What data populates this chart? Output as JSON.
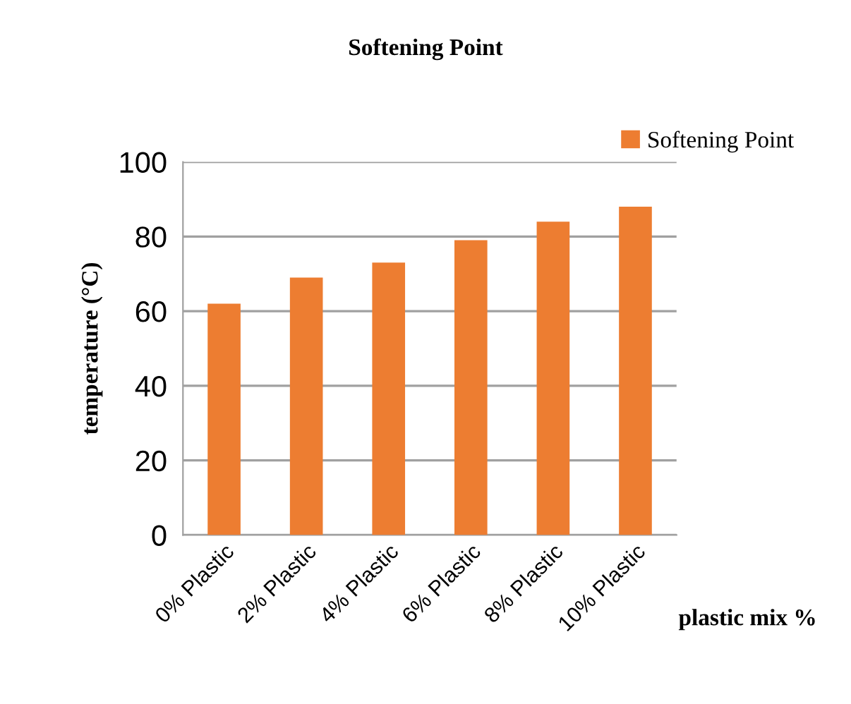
{
  "chart_data": {
    "type": "bar",
    "title": "Softening Point",
    "xlabel": "plastic mix %",
    "ylabel": "temperature (°C)",
    "categories": [
      "0% Plastic",
      "2% Plastic",
      "4% Plastic",
      "6% Plastic",
      "8% Plastic",
      "10% Plastic"
    ],
    "series": [
      {
        "name": "Softening Point",
        "color": "#ed7d31",
        "values": [
          62,
          69,
          73,
          79,
          84,
          88
        ]
      }
    ],
    "ylim": [
      0,
      100
    ],
    "yticks": [
      0,
      20,
      40,
      60,
      80,
      100
    ],
    "grid": "y",
    "legend": "top right"
  }
}
